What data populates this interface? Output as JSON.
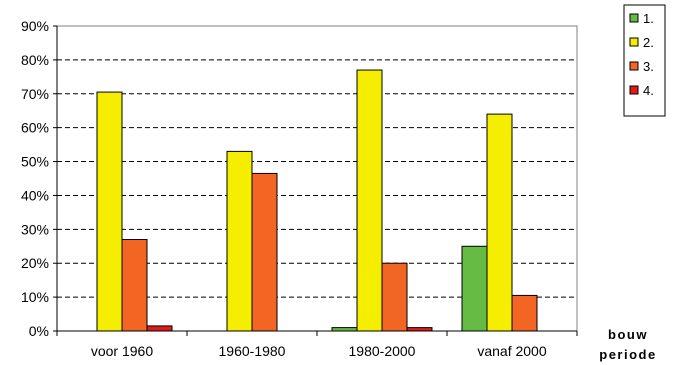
{
  "chart_data": {
    "type": "bar",
    "categories": [
      "voor 1960",
      "1960-1980",
      "1980-2000",
      "vanaf 2000"
    ],
    "series": [
      {
        "name": "1.",
        "color": "#66BB44",
        "values": [
          0,
          0,
          1,
          25
        ]
      },
      {
        "name": "2.",
        "color": "#F5EE00",
        "values": [
          70.5,
          53,
          77,
          64
        ]
      },
      {
        "name": "3.",
        "color": "#F26522",
        "values": [
          27,
          46.5,
          20,
          10.5
        ]
      },
      {
        "name": "4.",
        "color": "#E21A1A",
        "values": [
          1.5,
          0,
          1,
          0
        ]
      }
    ],
    "ylim": [
      0,
      90
    ],
    "yticks": [
      "0%",
      "10%",
      "20%",
      "30%",
      "40%",
      "50%",
      "60%",
      "70%",
      "80%",
      "90%"
    ],
    "xlabel": [
      "bouw",
      "periode"
    ],
    "ylabel": "",
    "title": "",
    "grid": "dashed horizontal",
    "legend": "top-right"
  }
}
